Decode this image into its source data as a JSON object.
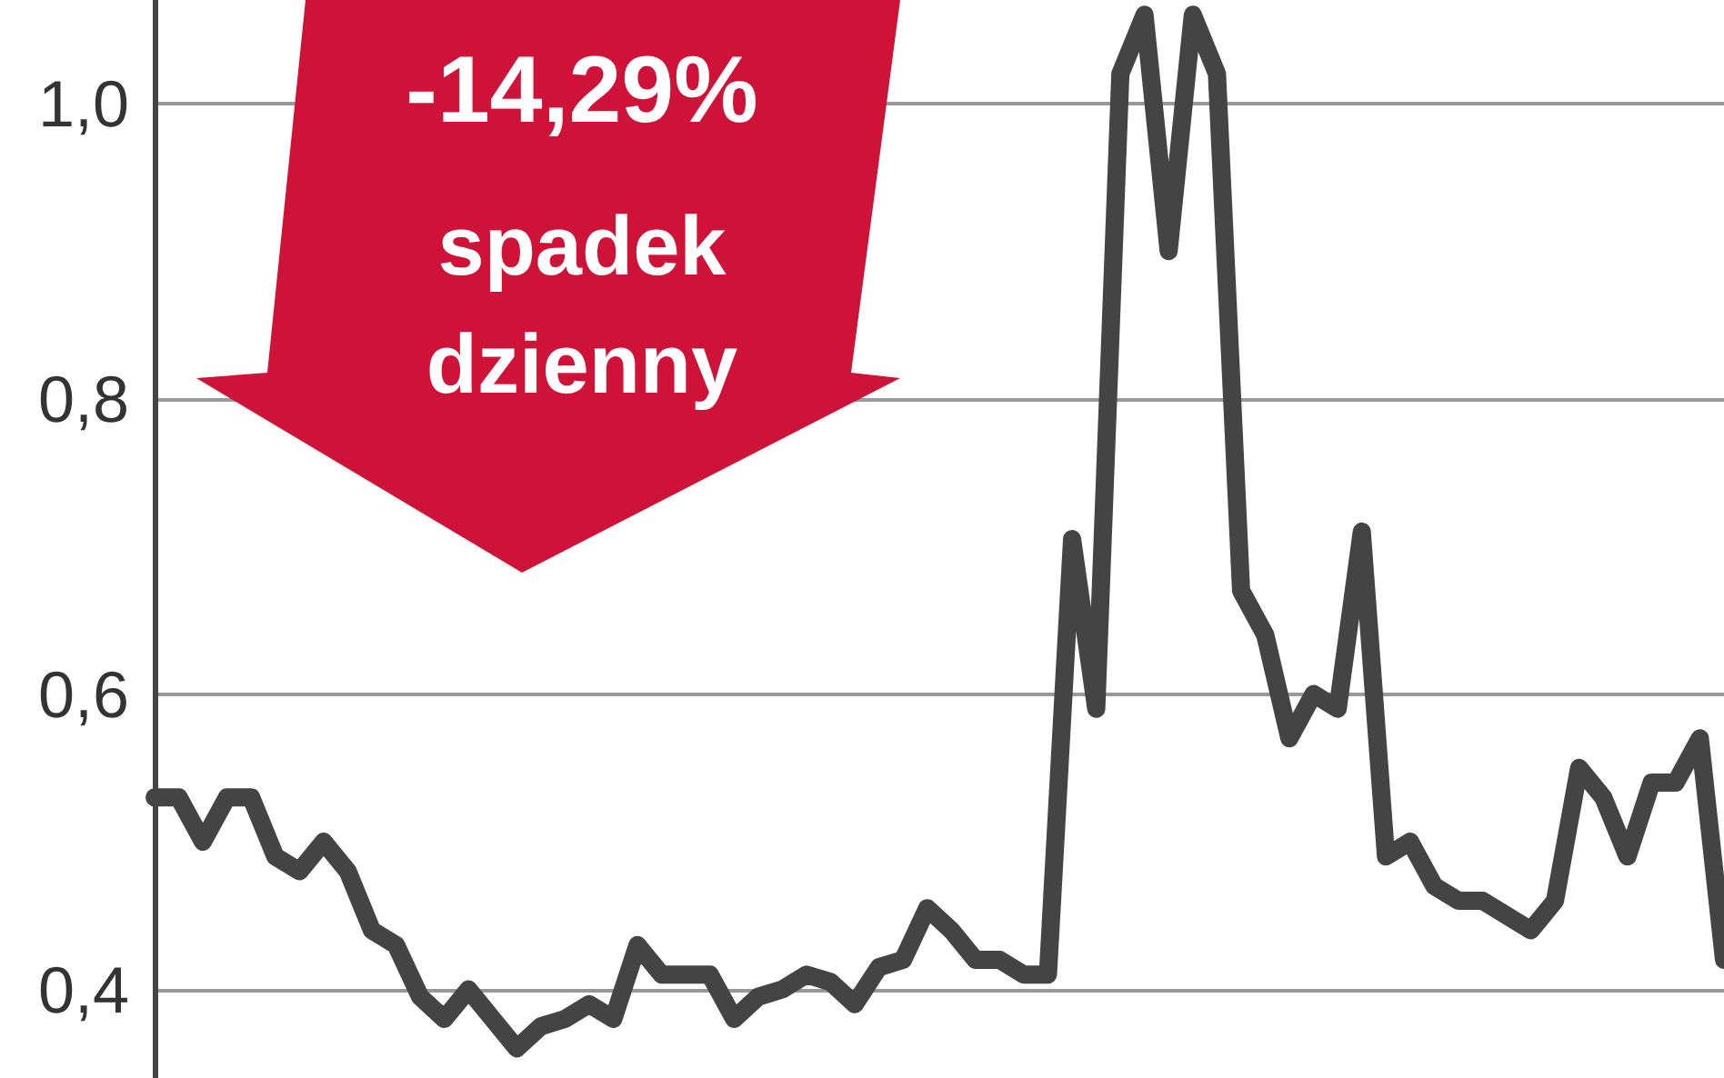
{
  "chart_data": {
    "type": "line",
    "categories": [
      null,
      null,
      null,
      null,
      null,
      null,
      null,
      null,
      null,
      null,
      null,
      null,
      null,
      null,
      null,
      null,
      null,
      null,
      null,
      null,
      null,
      null,
      null,
      null,
      null,
      null,
      null,
      null,
      null,
      null,
      null,
      null,
      null,
      null,
      null,
      null,
      null,
      null,
      null,
      null,
      null,
      null,
      null,
      null,
      null,
      null,
      null,
      null,
      null,
      null,
      null,
      null,
      null,
      null,
      null,
      null,
      null,
      null,
      null,
      null,
      null,
      null,
      null,
      null,
      null,
      null
    ],
    "series": [
      {
        "color": "#444444",
        "values": [
          0.53,
          0.53,
          0.5,
          0.53,
          0.53,
          0.49,
          0.48,
          0.5,
          0.48,
          0.44,
          0.43,
          0.395,
          0.38,
          0.4,
          0.38,
          0.36,
          0.375,
          0.38,
          0.39,
          0.38,
          0.43,
          0.41,
          0.41,
          0.41,
          0.38,
          0.395,
          0.4,
          0.41,
          0.405,
          0.39,
          0.415,
          0.42,
          0.455,
          0.44,
          0.42,
          0.42,
          0.41,
          0.41,
          0.705,
          0.59,
          1.02,
          1.06,
          0.9,
          1.06,
          1.02,
          0.67,
          0.64,
          0.57,
          0.6,
          0.59,
          0.71,
          0.49,
          0.5,
          0.47,
          0.46,
          0.46,
          0.45,
          0.44,
          0.46,
          0.55,
          0.53,
          0.49,
          0.54,
          0.54,
          0.57,
          0.42
        ]
      }
    ],
    "ylim": [
      0.34,
      1.07
    ],
    "yticks": [
      {
        "value": 0.4,
        "label": "0,4"
      },
      {
        "value": 0.6,
        "label": "0,6"
      },
      {
        "value": 0.8,
        "label": "0,8"
      },
      {
        "value": 1.0,
        "label": "1,0"
      }
    ],
    "grid": "y",
    "line_style": "solid",
    "annotations": [
      "-14,29%",
      "spadek",
      "dzienny"
    ]
  }
}
